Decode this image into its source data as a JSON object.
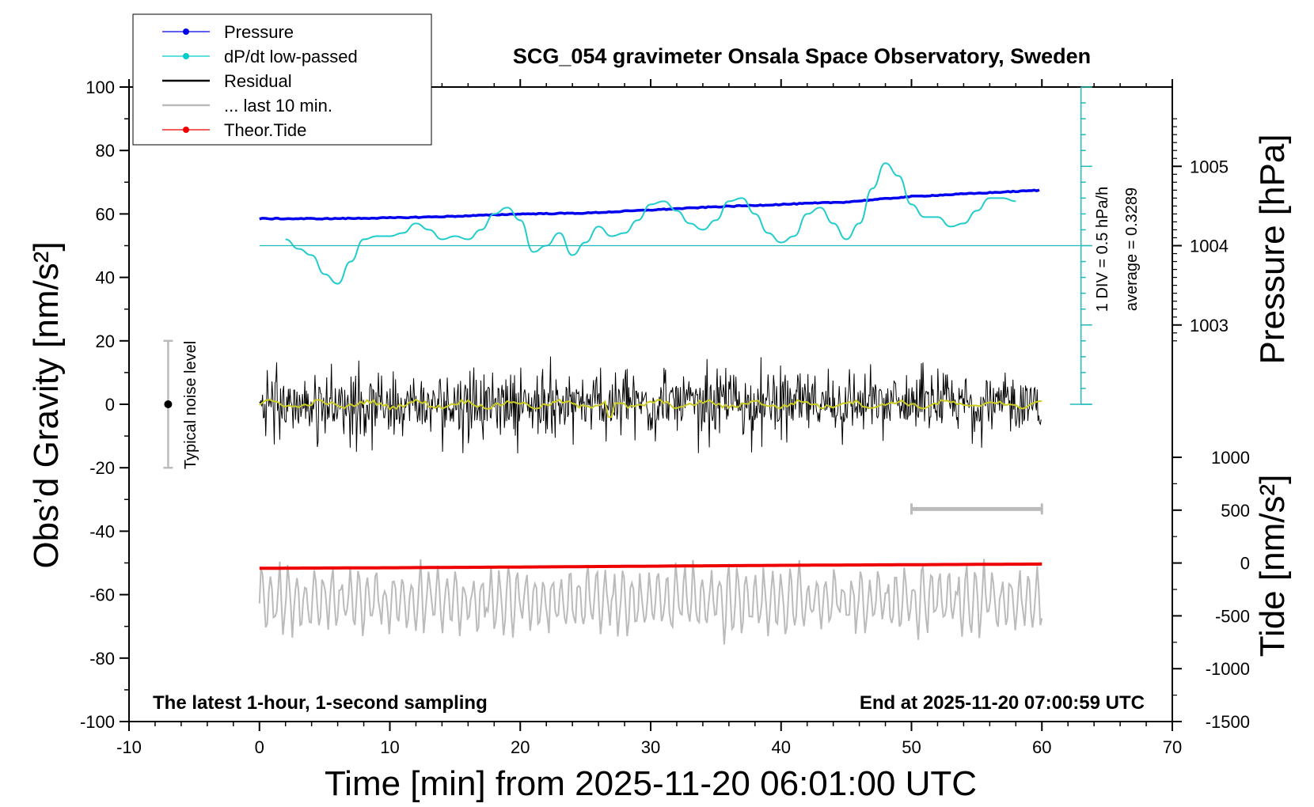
{
  "chart_data": {
    "type": "line",
    "title": "SCG_054 gravimeter Onsala Space Observatory, Sweden",
    "xlabel": "Time [min] from 2025-11-20 06:01:00 UTC",
    "ylabel": "Obs’d Gravity [nm/s²]",
    "ylabel_right_pressure": "Pressure [hPa]",
    "ylabel_right_tide": "Tide [nm/s²]",
    "xlim": [
      -10,
      70
    ],
    "ylim": [
      -100,
      100
    ],
    "x_ticks": [
      "-10",
      "0",
      "10",
      "20",
      "30",
      "40",
      "50",
      "60",
      "70"
    ],
    "y_ticks": [
      "100",
      "80",
      "60",
      "40",
      "20",
      "0",
      "-20",
      "-40",
      "-60",
      "-80",
      "-100"
    ],
    "pressure_ticks": [
      "1005",
      "1004",
      "1003"
    ],
    "pressure_range": [
      1004.0,
      1005.0
    ],
    "tide_ticks": [
      "1000",
      "500",
      "0",
      "-500",
      "-1000",
      "-1500"
    ],
    "tide_range": [
      -1500,
      1000
    ],
    "grid": false,
    "legend_position": "top-left",
    "legend": [
      {
        "name": "Pressure",
        "color": "#0000ee",
        "marker": "dot"
      },
      {
        "name": "dP/dt low-passed",
        "color": "#00cccc",
        "marker": "dot"
      },
      {
        "name": "Residual",
        "color": "#000000",
        "marker": "line"
      },
      {
        "name": "... last 10 min.",
        "color": "#bbbbbb",
        "marker": "line"
      },
      {
        "name": "Theor.Tide",
        "color": "#ee0000",
        "marker": "dot"
      }
    ],
    "series": [
      {
        "name": "Pressure",
        "units": "hPa",
        "x": [
          0,
          5,
          10,
          15,
          20,
          25,
          30,
          35,
          40,
          45,
          50,
          55,
          60
        ],
        "values": [
          1004.34,
          1004.34,
          1004.35,
          1004.37,
          1004.4,
          1004.41,
          1004.45,
          1004.49,
          1004.52,
          1004.55,
          1004.62,
          1004.66,
          1004.7
        ]
      },
      {
        "name": "dP/dt low-passed",
        "units": "nm/s² (plot scale)",
        "x": [
          2,
          3,
          4,
          5,
          6,
          7,
          8,
          9,
          10,
          11,
          12,
          13,
          14,
          15,
          16,
          17,
          18,
          19,
          20,
          21,
          22,
          23,
          24,
          25,
          26,
          27,
          28,
          29,
          30,
          31,
          32,
          33,
          34,
          35,
          36,
          37,
          38,
          39,
          40,
          41,
          42,
          43,
          44,
          45,
          46,
          47,
          48,
          49,
          50,
          51,
          52,
          53,
          54,
          55,
          56,
          57,
          58
        ],
        "values": [
          52,
          49,
          47,
          41,
          38,
          45,
          52,
          53,
          53,
          54,
          57,
          55,
          52,
          53,
          52,
          55,
          60,
          62,
          58,
          48,
          50,
          54,
          47,
          51,
          56,
          53,
          54,
          58,
          63,
          64,
          61,
          57,
          55,
          58,
          64,
          65,
          60,
          54,
          51,
          53,
          60,
          62,
          57,
          52,
          57,
          68,
          76,
          72,
          63,
          59,
          59,
          56,
          57,
          61,
          65,
          65,
          64
        ]
      },
      {
        "name": "Residual",
        "units": "nm/s²",
        "x_range": [
          0,
          60
        ],
        "envelope": [
          -17,
          16
        ],
        "mean": 0
      },
      {
        "name": "... last 10 min.",
        "units": "nm/s² (plot scale)",
        "x_range": [
          0,
          60
        ],
        "envelope": [
          -77,
          -46
        ],
        "mean": -62
      },
      {
        "name": "Theor.Tide",
        "units": "nm/s²",
        "x": [
          0,
          10,
          20,
          30,
          40,
          50,
          60
        ],
        "values": [
          -50,
          -45,
          -38,
          -30,
          -22,
          -16,
          -10
        ]
      }
    ],
    "annotations": {
      "noise_label": "Typical noise level",
      "noise_bar": {
        "x": -7,
        "center": 0,
        "half_range": 20
      },
      "div_label": "1 DIV = 0.5 hPa/h",
      "average_label": "average = 0.3289",
      "dpdt_scale": {
        "x": 63,
        "zero": 0,
        "top": 100,
        "baseline": 50
      },
      "last10_bar": {
        "x_start": 50,
        "x_end": 60,
        "y": -33
      },
      "footer_left": "The latest 1-hour, 1-second sampling",
      "footer_right": "End at 2025-11-20 07:00:59 UTC"
    }
  }
}
